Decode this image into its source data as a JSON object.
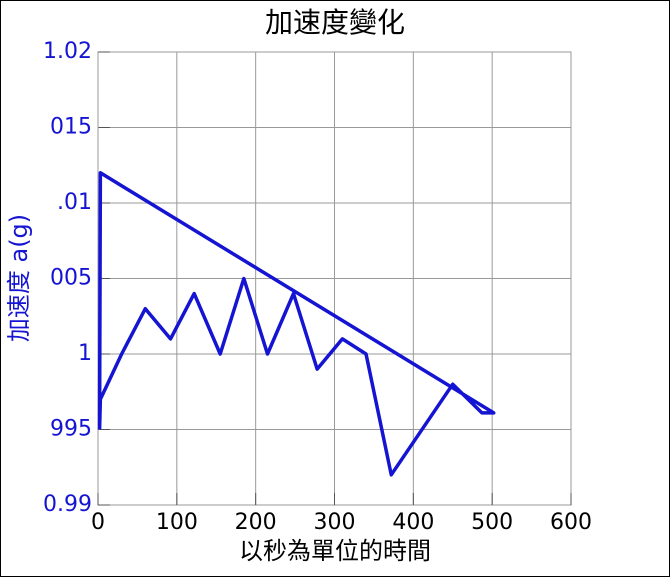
{
  "chart_data": {
    "type": "line",
    "title": "加速度變化",
    "xlabel": "以秒為單位的時間",
    "ylabel": "加速度 a(g)",
    "series": [
      {
        "name": "加速度",
        "color": "#1414d2",
        "x": [
          2,
          3,
          30,
          60,
          92,
          122,
          155,
          185,
          215,
          248,
          278,
          310,
          340,
          372,
          450,
          487,
          502,
          3,
          2
        ],
        "values": [
          0.995,
          0.997,
          1.0,
          1.003,
          1.001,
          1.004,
          1.0,
          1.005,
          1.0,
          1.004,
          0.999,
          1.001,
          1.0,
          0.992,
          0.998,
          0.9961,
          0.9961,
          1.012,
          0.995
        ]
      }
    ],
    "xlim": [
      0,
      600
    ],
    "xticks": [
      0,
      100,
      200,
      300,
      400,
      500,
      600
    ],
    "ylim": [
      0.99,
      1.02
    ],
    "yticks": [
      {
        "value": 0.99,
        "label": "0.99"
      },
      {
        "value": 0.995,
        "label": "995"
      },
      1,
      {
        "value": 1.005,
        "label": "005"
      },
      {
        "value": 1.01,
        "label": ".01"
      },
      {
        "value": 1.015,
        "label": "015"
      },
      {
        "value": 1.02,
        "label": "1.02"
      }
    ],
    "grid": true
  }
}
